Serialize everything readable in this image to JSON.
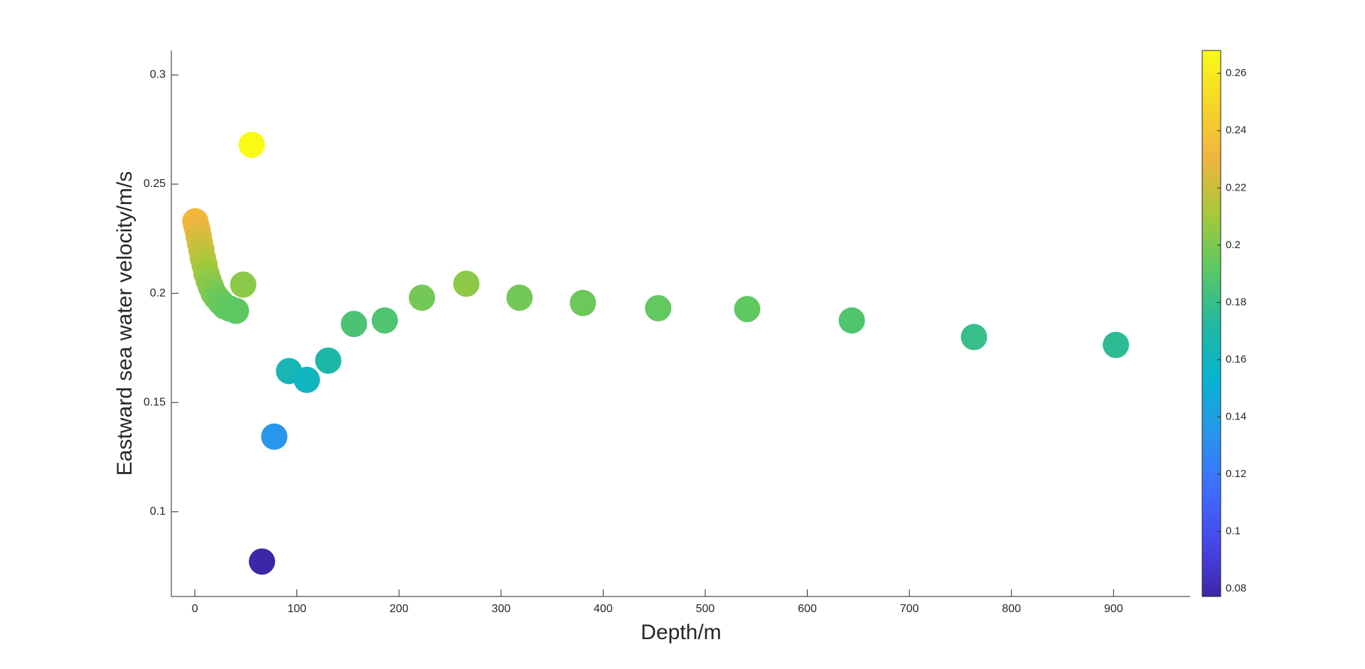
{
  "chart_data": {
    "type": "scatter",
    "x_label": "Depth/m",
    "y_label": "Eastward sea water velocity/m/s",
    "x": [
      0.49,
      1.54,
      2.65,
      3.82,
      5.08,
      6.44,
      7.93,
      9.57,
      11.4,
      13.47,
      15.81,
      18.5,
      21.6,
      25.2,
      29.4,
      34.4,
      40.3,
      47.4,
      55.8,
      65.8,
      77.85,
      92.3,
      109.7,
      130.7,
      155.9,
      186.1,
      222.5,
      266.0,
      318.1,
      380.2,
      453.9,
      541.1,
      643.6,
      763.3,
      902.3
    ],
    "values": [
      0.233,
      0.231,
      0.229,
      0.226,
      0.223,
      0.22,
      0.216,
      0.213,
      0.209,
      0.206,
      0.203,
      0.2,
      0.198,
      0.196,
      0.194,
      0.193,
      0.192,
      0.204,
      0.268,
      0.0772,
      0.1344,
      0.1644,
      0.1604,
      0.1692,
      0.186,
      0.1876,
      0.198,
      0.2044,
      0.198,
      0.1956,
      0.1932,
      0.1928,
      0.1876,
      0.18,
      0.1764
    ],
    "xlim": [
      -23,
      975
    ],
    "xticks": [
      0,
      100,
      200,
      300,
      400,
      500,
      600,
      700,
      800,
      900
    ],
    "ylim": [
      0.0612,
      0.3112
    ],
    "yticks": [
      0.1,
      0.15,
      0.2,
      0.25,
      0.3
    ],
    "colorbar": true,
    "clim": [
      0.0773,
      0.268
    ],
    "colorbar_ticks": [
      0.08,
      0.1,
      0.12,
      0.14,
      0.16,
      0.18,
      0.2,
      0.22,
      0.24,
      0.26
    ],
    "colormap": [
      "#3e26a8",
      "#4747eb",
      "#3e6fff",
      "#2796eb",
      "#08b4d0",
      "#22b8a0",
      "#5cc863",
      "#a5c939",
      "#f0b43f",
      "#f6d52a",
      "#f9fb15"
    ]
  }
}
